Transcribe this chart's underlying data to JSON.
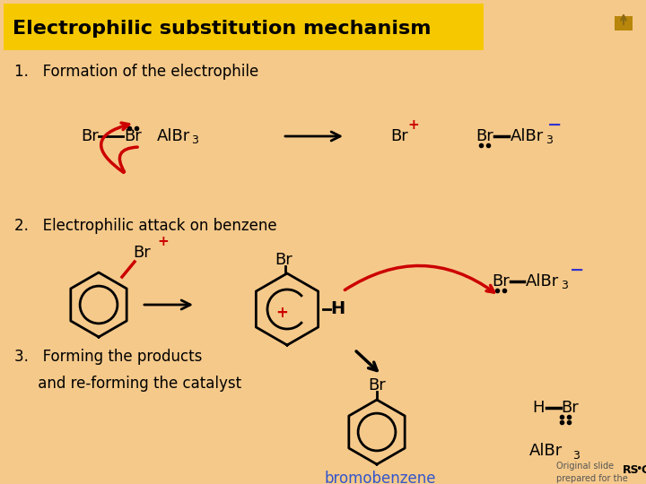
{
  "background_color": "#F5C98A",
  "title": "Electrophilic substitution mechanism",
  "title_bg": "#F5C800",
  "text_color": "#000000",
  "red_color": "#CC0000",
  "blue_color": "#3333CC",
  "step1_label": "1.   Formation of the electrophile",
  "step2_label": "2.   Electrophilic attack on benzene",
  "step3_label": "3.   Forming the products",
  "step3b_label": "     and re-forming the catalyst",
  "bromo_label": "bromobenzene"
}
